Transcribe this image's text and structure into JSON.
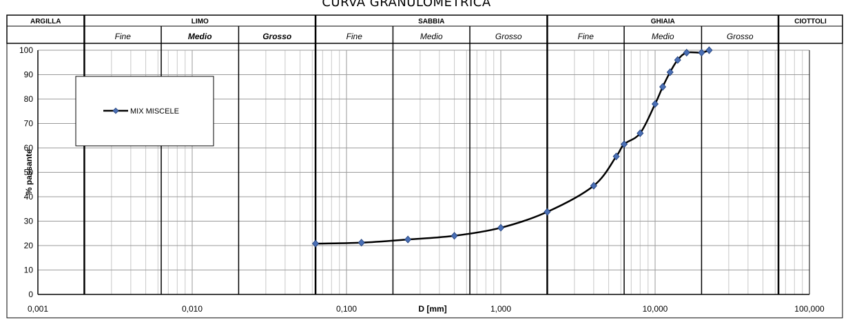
{
  "chart_data": {
    "type": "line",
    "title": "CURVA GRANULOMETRICA",
    "xlabel": "D [mm]",
    "ylabel": "% passante",
    "x_scale": "log",
    "xlim": [
      0.001,
      100
    ],
    "ylim": [
      0,
      100
    ],
    "x_ticks": [
      "0,001",
      "0,010",
      "0,100",
      "1,000",
      "10,000",
      "100,000"
    ],
    "y_ticks": [
      "0",
      "10",
      "20",
      "30",
      "40",
      "50",
      "60",
      "70",
      "80",
      "90",
      "100"
    ],
    "grid": true,
    "legend_position": "top-left",
    "series": [
      {
        "name": "MIX MISCELE",
        "color": "#000000",
        "marker_color": "#4a6fb5",
        "x": [
          0.063,
          0.125,
          0.25,
          0.5,
          1,
          2,
          4,
          5.6,
          6.3,
          8,
          10,
          11.2,
          12.5,
          14,
          16,
          20,
          22.4
        ],
        "y": [
          20.8,
          21.2,
          22.5,
          24,
          27.3,
          33.8,
          44.5,
          56.5,
          61.5,
          66,
          78,
          85,
          91,
          96,
          99,
          99,
          100
        ]
      }
    ],
    "classification": {
      "bands": [
        {
          "label": "ARGILLA",
          "from": 0.001,
          "to": 0.002
        },
        {
          "label": "LIMO",
          "from": 0.002,
          "to": 0.063
        },
        {
          "label": "SABBIA",
          "from": 0.063,
          "to": 2
        },
        {
          "label": "GHIAIA",
          "from": 2,
          "to": 63
        },
        {
          "label": "CIOTTOLI",
          "from": 63,
          "to": 100
        }
      ],
      "subbands": [
        {
          "label": "Fine",
          "from": 0.002,
          "to": 0.0063,
          "bold": false
        },
        {
          "label": "Medio",
          "from": 0.0063,
          "to": 0.02,
          "bold": true
        },
        {
          "label": "Grosso",
          "from": 0.02,
          "to": 0.063,
          "bold": true
        },
        {
          "label": "Fine",
          "from": 0.063,
          "to": 0.2,
          "bold": false
        },
        {
          "label": "Medio",
          "from": 0.2,
          "to": 0.63,
          "bold": false
        },
        {
          "label": "Grosso",
          "from": 0.63,
          "to": 2,
          "bold": false
        },
        {
          "label": "Fine",
          "from": 2,
          "to": 6.3,
          "bold": false
        },
        {
          "label": "Medio",
          "from": 6.3,
          "to": 20,
          "bold": false
        },
        {
          "label": "Grosso",
          "from": 20,
          "to": 63,
          "bold": false
        }
      ],
      "boundaries": [
        0.002,
        0.0063,
        0.02,
        0.063,
        0.2,
        0.63,
        2,
        6.3,
        20,
        63
      ]
    }
  }
}
